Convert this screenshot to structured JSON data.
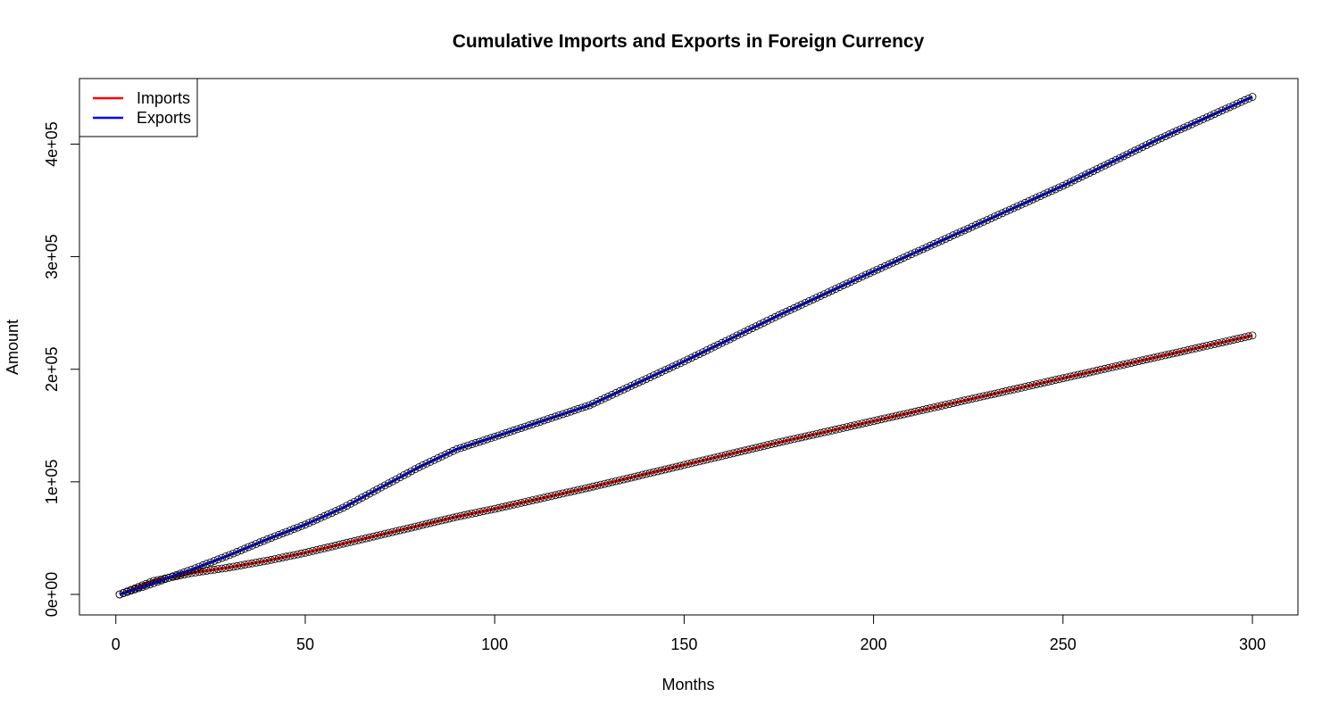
{
  "chart_data": {
    "type": "line",
    "title": "Cumulative Imports and Exports in Foreign Currency",
    "xlabel": "Months",
    "ylabel": "Amount",
    "xlim": [
      1,
      300
    ],
    "ylim": [
      0,
      440000
    ],
    "x_ticks": [
      0,
      50,
      100,
      150,
      200,
      250,
      300
    ],
    "x_tick_labels": [
      "0",
      "50",
      "100",
      "150",
      "200",
      "250",
      "300"
    ],
    "y_ticks": [
      0,
      100000,
      200000,
      300000,
      400000
    ],
    "y_tick_labels": [
      "0e+00",
      "1e+05",
      "2e+05",
      "3e+05",
      "4e+05"
    ],
    "grid": false,
    "legend_position": "top-left",
    "markers": "open circles",
    "series": [
      {
        "name": "Imports",
        "color": "#ff0000",
        "x": [
          1,
          10,
          20,
          30,
          40,
          50,
          60,
          70,
          80,
          90,
          100,
          125,
          150,
          175,
          200,
          225,
          250,
          275,
          300
        ],
        "values": [
          0,
          12000,
          19000,
          24000,
          30000,
          37000,
          45000,
          53000,
          61000,
          69000,
          76000,
          95000,
          115000,
          135000,
          154000,
          173000,
          192000,
          211000,
          230000
        ]
      },
      {
        "name": "Exports",
        "color": "#0000ff",
        "x": [
          1,
          10,
          20,
          30,
          40,
          50,
          60,
          70,
          80,
          90,
          100,
          125,
          150,
          175,
          200,
          225,
          250,
          275,
          300
        ],
        "values": [
          0,
          10000,
          22000,
          35000,
          49000,
          62000,
          77000,
          95000,
          113000,
          129000,
          140000,
          168000,
          207000,
          248000,
          287000,
          325000,
          363000,
          404000,
          442000
        ]
      }
    ]
  }
}
